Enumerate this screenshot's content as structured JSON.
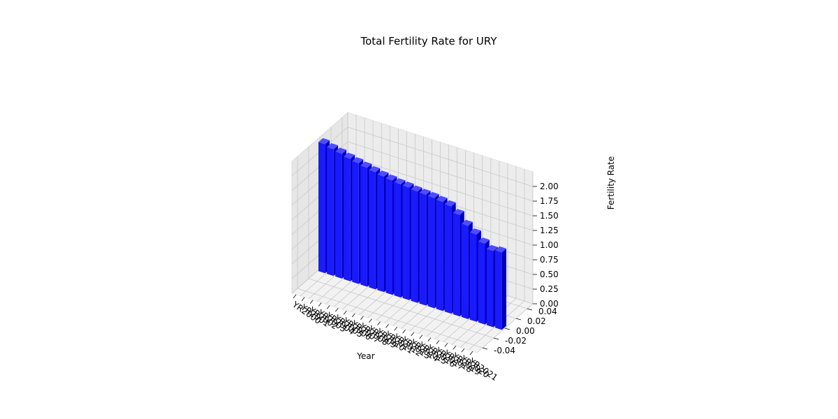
{
  "chart_data": {
    "type": "bar",
    "title": "Total Fertility Rate for URY",
    "xlabel": "Year",
    "ylabel": "",
    "zlabel": "Fertility Rate",
    "categories": [
      "YR2000",
      "YR2001",
      "YR2002",
      "YR2003",
      "YR2004",
      "YR2005",
      "YR2006",
      "YR2007",
      "YR2008",
      "YR2009",
      "YR2010",
      "YR2011",
      "YR2012",
      "YR2013",
      "YR2014",
      "YR2015",
      "YR2016",
      "YR2017",
      "YR2018",
      "YR2019",
      "YR2020",
      "YR2021"
    ],
    "values": [
      2.2,
      2.16,
      2.13,
      2.09,
      2.06,
      2.03,
      2.0,
      1.97,
      1.95,
      1.93,
      1.92,
      1.9,
      1.89,
      1.88,
      1.86,
      1.83,
      1.73,
      1.59,
      1.49,
      1.38,
      1.3,
      1.32
    ],
    "y_ticks": [
      "-0.04",
      "-0.02",
      "0.00",
      "0.02",
      "0.04"
    ],
    "z_ticks": [
      "0.00",
      "0.25",
      "0.50",
      "0.75",
      "1.00",
      "1.25",
      "1.50",
      "1.75",
      "2.00"
    ],
    "zlim": [
      0,
      2.2
    ],
    "grid": true,
    "bar_color": "#0000ff"
  }
}
